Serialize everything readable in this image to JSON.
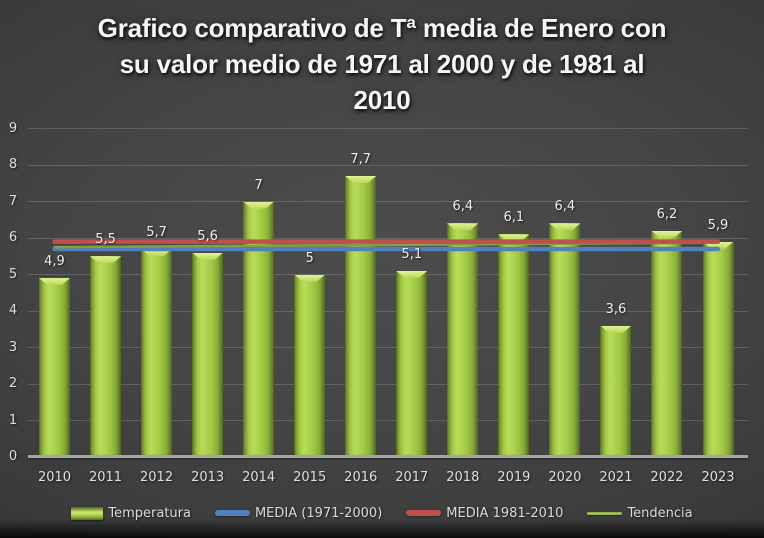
{
  "title_lines": [
    "Grafico comparativo de Tª media de Enero con",
    "su valor medio de 1971 al 2000 y de 1981 al",
    "2010"
  ],
  "chart_data": {
    "type": "bar",
    "title": "Grafico comparativo de Tª media de Enero con su valor medio de 1971 al 2000 y de 1981 al 2010",
    "categories": [
      "2010",
      "2011",
      "2012",
      "2013",
      "2014",
      "2015",
      "2016",
      "2017",
      "2018",
      "2019",
      "2020",
      "2021",
      "2022",
      "2023"
    ],
    "series": [
      {
        "name": "Temperatura",
        "kind": "bar",
        "color": "#A0C93E",
        "values": [
          4.9,
          5.5,
          5.7,
          5.6,
          7,
          5,
          7.7,
          5.1,
          6.4,
          6.1,
          6.4,
          3.6,
          6.2,
          5.9
        ],
        "labels": [
          "4,9",
          "5,5",
          "5,7",
          "5,6",
          "7",
          "5",
          "7,7",
          "5,1",
          "6,4",
          "6,1",
          "6,4",
          "3,6",
          "6,2",
          "5,9"
        ]
      },
      {
        "name": "MEDIA (1971-2000)",
        "kind": "line",
        "color": "#4F81BD",
        "value": 5.7
      },
      {
        "name": "MEDIA 1981-2010",
        "kind": "line",
        "color": "#C0504D",
        "value": 5.9
      },
      {
        "name": "Tendencia",
        "kind": "trendline",
        "color": "#85A03E",
        "start": 5.75,
        "end": 5.87
      }
    ],
    "xlabel": "",
    "ylabel": "",
    "ylim": [
      0,
      9
    ],
    "yticks": [
      0,
      1,
      2,
      3,
      4,
      5,
      6,
      7,
      8,
      9
    ],
    "grid": true,
    "legend_position": "bottom",
    "decimal_separator": ","
  },
  "colors": {
    "background_center": "#4c4c4c",
    "background_edge": "#232323",
    "bar_fill": "#A0C93E",
    "line_1971_2000": "#4F81BD",
    "line_1981_2010": "#C0504D",
    "trend_line": "#85A03E",
    "text": "#dedede",
    "gridline": "rgba(255,255,255,0.16)",
    "axis": "#a6a6a6"
  }
}
